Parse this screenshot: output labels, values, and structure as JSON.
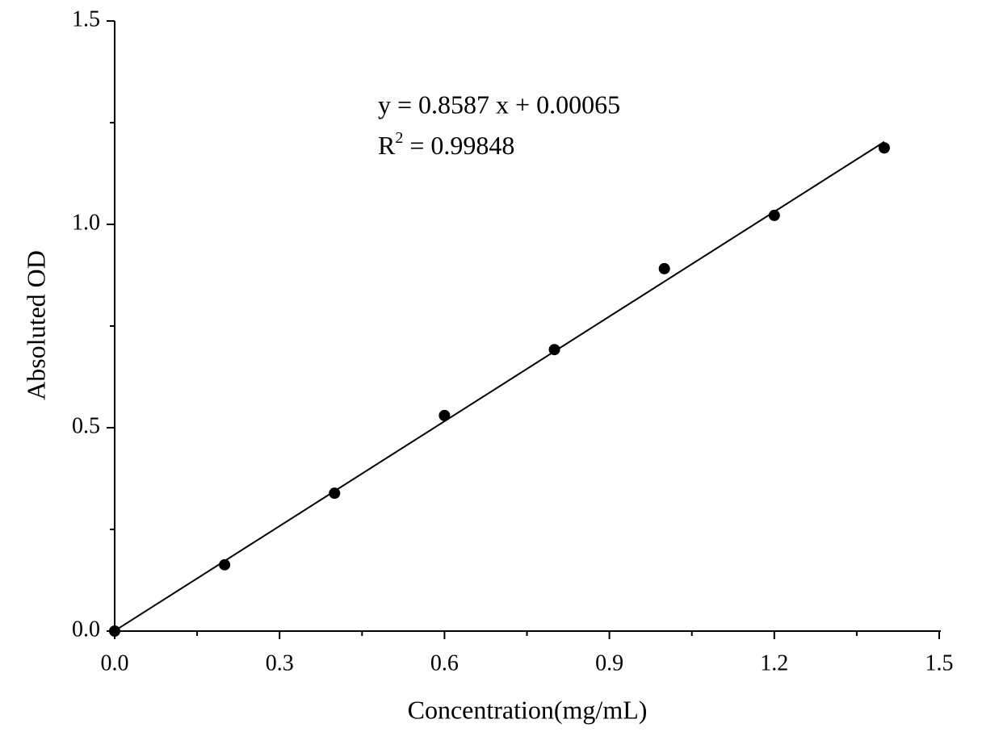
{
  "chart_data": {
    "type": "scatter",
    "x_label": "Concentration(mg/mL)",
    "y_label": "Absoluted OD",
    "equation": "y = 0.8587 x + 0.00065",
    "r_squared": {
      "base": "R",
      "sup": "2",
      "text": "= 0.99848"
    },
    "fit": {
      "slope": 0.8587,
      "intercept": 0.00065,
      "x_range": [
        0,
        1.4
      ]
    },
    "x": [
      0,
      0.2,
      0.4,
      0.6,
      0.8,
      1.0,
      1.2,
      1.4
    ],
    "values": [
      0,
      0.163,
      0.339,
      0.53,
      0.692,
      0.891,
      1.022,
      1.188
    ],
    "color": "#000000",
    "xlim": [
      0,
      1.5
    ],
    "ylim": [
      0,
      1.5
    ],
    "xticks": [
      {
        "value": 0,
        "label": "0.0"
      },
      0.3,
      0.6,
      0.9,
      1.2,
      1.5
    ],
    "yticks": [
      {
        "value": 0,
        "label": "0.0"
      },
      0.5,
      {
        "value": 1,
        "label": "1.0"
      },
      1.5
    ],
    "x_minor_ticks": [
      0.15,
      0.45,
      0.75,
      1.05,
      1.35
    ],
    "y_minor_ticks": [
      0.25,
      0.75,
      1.25
    ]
  }
}
